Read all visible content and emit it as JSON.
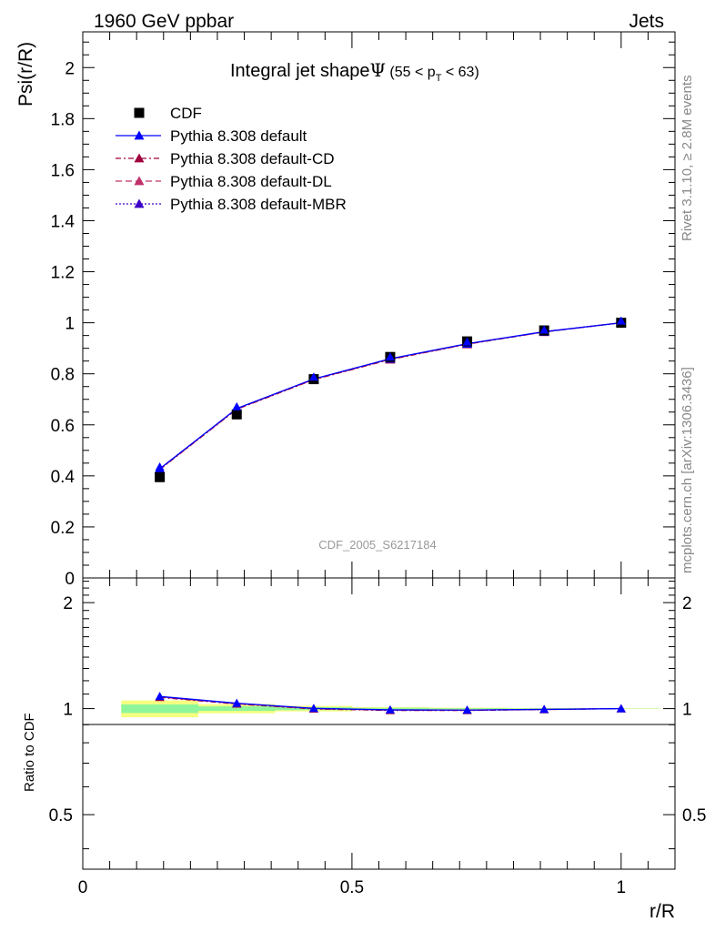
{
  "header": {
    "left": "1960 GeV ppbar",
    "right": "Jets"
  },
  "side_text": {
    "rivet": "Rivet 3.1.10, ≥ 2.8M events",
    "mcplots": "mcplots.cern.ch [arXiv:1306.3436]"
  },
  "title": {
    "main": "Integral jet shape",
    "psi": "Ψ",
    "range_pre": " (55 < p",
    "range_sub": "T",
    "range_post": " < 63)"
  },
  "watermark": "CDF_2005_S6217184",
  "colors": {
    "data": "#000000",
    "default": "#0000ff",
    "default_cd": "#a0003c",
    "default_dl": "#c0306a",
    "default_mbr": "#3c00c8",
    "band_inner": "#8ff59a",
    "band_outer": "#f5ff80"
  },
  "chart_data": [
    {
      "type": "line",
      "ylabel": "Psi(r/R)",
      "xlim": [
        0,
        1.1
      ],
      "ylim": [
        0,
        2.14
      ],
      "y_ticks": [
        "0",
        "0.2",
        "0.4",
        "0.6",
        "0.8",
        "1",
        "1.2",
        "1.4",
        "1.6",
        "1.8",
        "2"
      ],
      "x": [
        0.143,
        0.286,
        0.429,
        0.571,
        0.714,
        0.857,
        1.0
      ],
      "series": [
        {
          "name": "CDF",
          "style": "square-markers",
          "values": [
            0.395,
            0.641,
            0.779,
            0.866,
            0.927,
            0.97,
            1.0
          ]
        },
        {
          "name": "Pythia 8.308 default",
          "style": "solid-triangles",
          "values": [
            0.428,
            0.664,
            0.78,
            0.859,
            0.918,
            0.965,
            1.0
          ]
        },
        {
          "name": "Pythia 8.308 default-CD",
          "style": "dashdot-triangles",
          "values": [
            0.425,
            0.661,
            0.777,
            0.856,
            0.916,
            0.964,
            1.0
          ]
        },
        {
          "name": "Pythia 8.308 default-DL",
          "style": "dashed-triangles",
          "values": [
            0.426,
            0.662,
            0.778,
            0.857,
            0.917,
            0.964,
            1.0
          ]
        },
        {
          "name": "Pythia 8.308 default-MBR",
          "style": "dotted-triangles",
          "values": [
            0.427,
            0.663,
            0.779,
            0.858,
            0.917,
            0.965,
            1.0
          ]
        }
      ],
      "legend": "top-left"
    },
    {
      "type": "line",
      "xlabel": "r/R",
      "ylabel": "Ratio to CDF",
      "xlim": [
        0,
        1.1
      ],
      "ylim": [
        0.35,
        2.35
      ],
      "y_ticks": [
        "0.5",
        "1",
        "2"
      ],
      "x_ticks": [
        "0",
        "0.5",
        "1"
      ],
      "x": [
        0.143,
        0.286,
        0.429,
        0.571,
        0.714,
        0.857,
        1.0
      ],
      "series": [
        {
          "name": "Pythia 8.308 default",
          "values": [
            1.083,
            1.036,
            1.002,
            0.992,
            0.991,
            0.995,
            1.0
          ]
        },
        {
          "name": "Pythia 8.308 default-CD",
          "values": [
            1.076,
            1.031,
            0.998,
            0.988,
            0.988,
            0.994,
            1.0
          ]
        },
        {
          "name": "Pythia 8.308 default-DL",
          "values": [
            1.079,
            1.033,
            0.999,
            0.99,
            0.989,
            0.994,
            1.0
          ]
        },
        {
          "name": "Pythia 8.308 default-MBR",
          "values": [
            1.081,
            1.034,
            1.0,
            0.991,
            0.99,
            0.995,
            1.0
          ]
        }
      ],
      "data_band": {
        "x_edges": [
          0.0715,
          0.2145,
          0.3575,
          0.5005,
          0.6435,
          0.7865,
          0.9285,
          1.0715
        ],
        "inner": [
          [
            0.972,
            1.028
          ],
          [
            0.985,
            1.015
          ],
          [
            0.99,
            1.01
          ],
          [
            0.995,
            1.005
          ],
          [
            0.997,
            1.003
          ],
          [
            0.998,
            1.002
          ],
          [
            0.999,
            1.001
          ]
        ],
        "outer": [
          [
            0.945,
            1.055
          ],
          [
            0.97,
            1.03
          ],
          [
            0.982,
            1.018
          ],
          [
            0.99,
            1.01
          ],
          [
            0.994,
            1.006
          ],
          [
            0.996,
            1.004
          ],
          [
            0.998,
            1.002
          ]
        ]
      }
    }
  ]
}
